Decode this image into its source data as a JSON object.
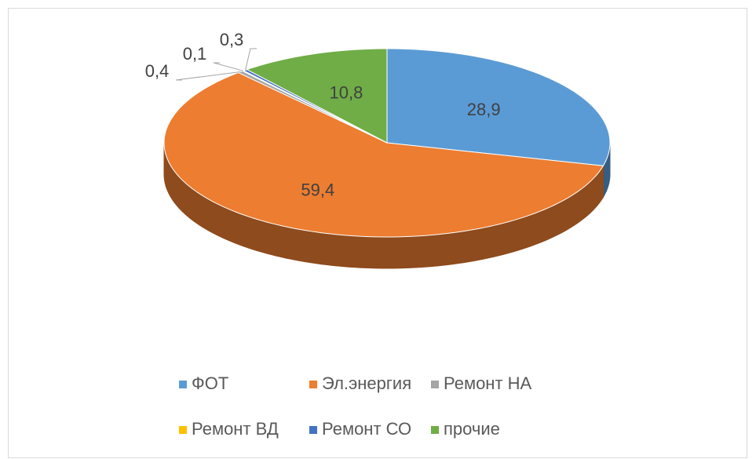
{
  "chart_data": {
    "type": "pie",
    "categories": [
      "ФОТ",
      "Эл.энергия",
      "Ремонт НА",
      "Ремонт ВД",
      "Ремонт СО",
      "прочие"
    ],
    "values": [
      28.9,
      59.4,
      0.4,
      0.1,
      0.3,
      10.8
    ],
    "value_labels": [
      "28,9",
      "59,4",
      "0,4",
      "0,1",
      "0,3",
      "10,8"
    ],
    "colors": [
      "#5b9bd5",
      "#ed7d31",
      "#a5a5a5",
      "#ffc000",
      "#4472c4",
      "#70ad47"
    ],
    "legend": "bottom"
  }
}
